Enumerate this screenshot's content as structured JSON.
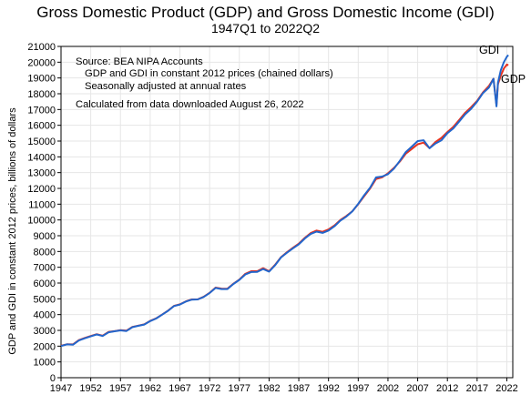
{
  "chart_data": {
    "type": "line",
    "title": "Gross Domestic Product (GDP) and Gross Domestic Income (GDI)",
    "subtitle": "1947Q1 to 2022Q2",
    "xlabel": "",
    "ylabel": "GDP and GDI in constant 2012 prices, billions of dollars",
    "xlim": [
      1947,
      2023
    ],
    "ylim": [
      0,
      21000
    ],
    "grid": true,
    "x_ticks": [
      "1947",
      "1952",
      "1957",
      "1962",
      "1967",
      "1972",
      "1977",
      "1982",
      "1987",
      "1992",
      "1997",
      "2002",
      "2007",
      "2012",
      "2017",
      "2022"
    ],
    "y_ticks": [
      "0",
      "1000",
      "2000",
      "3000",
      "4000",
      "5000",
      "6000",
      "7000",
      "8000",
      "9000",
      "10000",
      "11000",
      "12000",
      "13000",
      "14000",
      "15000",
      "16000",
      "17000",
      "18000",
      "19000",
      "20000",
      "21000"
    ],
    "annotations": [
      "Source:  BEA NIPA Accounts",
      "GDP and GDI in constant 2012 prices (chained dollars)",
      "Seasonally adjusted at annual rates",
      "Calculated from data downloaded August 26, 2022"
    ],
    "series": [
      {
        "name": "GDP",
        "color": "#e8321e",
        "x": [
          1947,
          1948,
          1949,
          1950,
          1951,
          1952,
          1953,
          1954,
          1955,
          1956,
          1957,
          1958,
          1959,
          1960,
          1961,
          1962,
          1963,
          1964,
          1965,
          1966,
          1967,
          1968,
          1969,
          1970,
          1971,
          1972,
          1973,
          1974,
          1975,
          1976,
          1977,
          1978,
          1979,
          1980,
          1981,
          1982,
          1983,
          1984,
          1985,
          1986,
          1987,
          1988,
          1989,
          1990,
          1991,
          1992,
          1993,
          1994,
          1995,
          1996,
          1997,
          1998,
          1999,
          2000,
          2001,
          2002,
          2003,
          2004,
          2005,
          2006,
          2007,
          2008,
          2009,
          2010,
          2011,
          2012,
          2013,
          2014,
          2015,
          2016,
          2017,
          2018,
          2019,
          2019.75,
          2020.25,
          2020.5,
          2021,
          2021.5,
          2022,
          2022.25
        ],
        "y": [
          2030,
          2120,
          2110,
          2380,
          2520,
          2640,
          2760,
          2660,
          2900,
          2950,
          3020,
          2980,
          3220,
          3300,
          3380,
          3600,
          3760,
          4000,
          4250,
          4550,
          4650,
          4840,
          4960,
          4970,
          5130,
          5380,
          5710,
          5650,
          5640,
          5960,
          6220,
          6580,
          6750,
          6750,
          6940,
          6750,
          7150,
          7640,
          7950,
          8230,
          8500,
          8860,
          9170,
          9330,
          9250,
          9400,
          9650,
          10000,
          10250,
          10550,
          11000,
          11500,
          12000,
          12600,
          12700,
          12950,
          13300,
          13700,
          14200,
          14500,
          14800,
          14900,
          14550,
          14950,
          15200,
          15570,
          15900,
          16350,
          16800,
          17150,
          17550,
          18100,
          18500,
          18950,
          17300,
          18600,
          19150,
          19600,
          19850,
          19800
        ]
      },
      {
        "name": "GDI",
        "color": "#2266cc",
        "x": [
          1947,
          1948,
          1949,
          1950,
          1951,
          1952,
          1953,
          1954,
          1955,
          1956,
          1957,
          1958,
          1959,
          1960,
          1961,
          1962,
          1963,
          1964,
          1965,
          1966,
          1967,
          1968,
          1969,
          1970,
          1971,
          1972,
          1973,
          1974,
          1975,
          1976,
          1977,
          1978,
          1979,
          1980,
          1981,
          1982,
          1983,
          1984,
          1985,
          1986,
          1987,
          1988,
          1989,
          1990,
          1991,
          1992,
          1993,
          1994,
          1995,
          1996,
          1997,
          1998,
          1999,
          2000,
          2001,
          2002,
          2003,
          2004,
          2005,
          2006,
          2007,
          2008,
          2009,
          2010,
          2011,
          2012,
          2013,
          2014,
          2015,
          2016,
          2017,
          2018,
          2019,
          2019.75,
          2020.25,
          2020.5,
          2021,
          2021.5,
          2022,
          2022.25
        ],
        "y": [
          2010,
          2110,
          2090,
          2360,
          2500,
          2620,
          2740,
          2640,
          2880,
          2940,
          3000,
          2960,
          3200,
          3290,
          3370,
          3590,
          3750,
          3990,
          4240,
          4540,
          4640,
          4830,
          4950,
          4960,
          5120,
          5370,
          5690,
          5620,
          5620,
          5940,
          6200,
          6540,
          6700,
          6710,
          6890,
          6720,
          7120,
          7620,
          7920,
          8200,
          8460,
          8820,
          9110,
          9260,
          9180,
          9330,
          9600,
          9960,
          10220,
          10540,
          11020,
          11560,
          12050,
          12700,
          12750,
          12900,
          13250,
          13750,
          14300,
          14650,
          15000,
          15050,
          14550,
          14850,
          15050,
          15500,
          15800,
          16250,
          16700,
          17050,
          17500,
          18050,
          18400,
          18950,
          17200,
          18700,
          19500,
          20000,
          20350,
          20450
        ]
      }
    ],
    "series_labels": {
      "gdi": "GDI",
      "gdp": "GDP"
    }
  }
}
